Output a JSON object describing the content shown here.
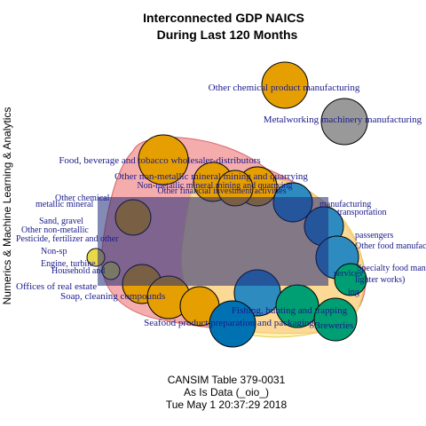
{
  "title": {
    "line1": "Interconnected GDP NAICS",
    "line2": "During Last 120 Months"
  },
  "y_axis_label": "Numerics & Machine Learning & Analytics",
  "caption": {
    "line1": "CANSIM Table 379-0031",
    "line2": "As Is Data (_oio_)",
    "line3": "Tue May  1 20:37:29 2018"
  },
  "colors": {
    "orange": "#E69F00",
    "blue": "#2E8BC0",
    "dark_blue": "#0072B2",
    "green": "#009E73",
    "gray": "#999999",
    "yellow": "#E8D84A",
    "red_hull": "#F08080",
    "yellow_hull": "#FFEC8B",
    "label": "#1a1a8c"
  },
  "nodes": {
    "chemical": "Other chemical product manufacturing",
    "metalworking": "Metalworking machinery manufacturing",
    "food_bev": "Food, beverage and tobacco wholesaler-distributors",
    "nonmetallic": "Other non-metallic mineral mining and quarrying",
    "nonmetallic2": "Non-metallic mineral mining and quarrying",
    "other_fin": "Other financial investment activities",
    "metallic": "metallic mineral",
    "other_chem_left": "Other chemical",
    "sand": "Sand, gravel",
    "pesticide": "Pesticide, fertilizer and other",
    "other_nonmet": "Other non-metallic",
    "non_sp": "Non-sp",
    "engine": "Engine, turbine",
    "household": "Household and",
    "offices_re": "Offices of real estate",
    "soap": "Soap, cleaning compounds",
    "seafood": "Seafood product preparation and packaging",
    "fishing": "Fishing, hunting and trapping",
    "breweries": "Breweries",
    "specialty_food": "Specialty food manu",
    "lighter_works": "lighter works)",
    "transportation": "transportation",
    "passengers": "passengers",
    "other_food": "Other food manufacturing",
    "manufacturing": "manufacturing",
    "services": "services",
    "ing": "ing"
  }
}
